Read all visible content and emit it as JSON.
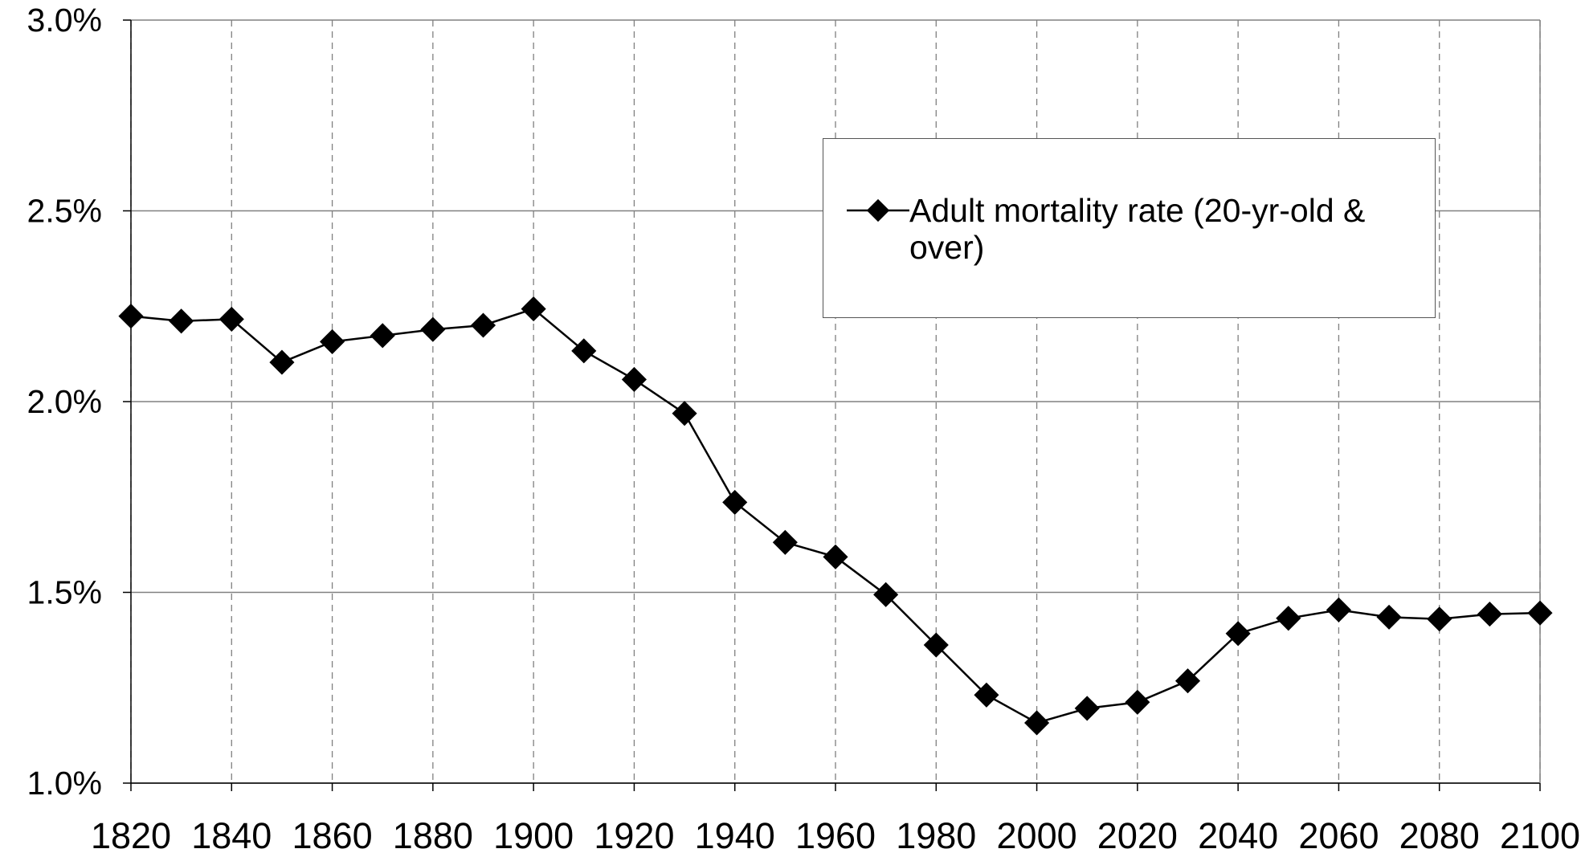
{
  "chart_data": {
    "type": "line",
    "x": [
      1820,
      1830,
      1840,
      1850,
      1860,
      1870,
      1880,
      1890,
      1900,
      1910,
      1920,
      1930,
      1940,
      1950,
      1960,
      1970,
      1980,
      1990,
      2000,
      2010,
      2020,
      2030,
      2040,
      2050,
      2060,
      2070,
      2080,
      2090,
      2100
    ],
    "series": [
      {
        "name": "Adult mortality rate (20-yr-old & over)",
        "color": "#000000",
        "values": [
          2.224,
          2.211,
          2.216,
          2.103,
          2.157,
          2.173,
          2.189,
          2.2,
          2.243,
          2.133,
          2.058,
          1.969,
          1.736,
          1.631,
          1.593,
          1.494,
          1.362,
          1.231,
          1.158,
          1.196,
          1.212,
          1.268,
          1.392,
          1.432,
          1.454,
          1.435,
          1.43,
          1.443,
          1.446
        ]
      }
    ],
    "xlim": [
      1820,
      2100
    ],
    "xticks": [
      1820,
      1840,
      1860,
      1880,
      1900,
      1920,
      1940,
      1960,
      1980,
      2000,
      2020,
      2040,
      2060,
      2080,
      2100
    ],
    "ylim": [
      1,
      3
    ],
    "yticks": [
      {
        "value": 1,
        "label": "1.0%"
      },
      {
        "value": 1.5,
        "label": "1.5%"
      },
      {
        "value": 2,
        "label": "2.0%"
      },
      {
        "value": 2.5,
        "label": "2.5%"
      },
      {
        "value": 3,
        "label": "3.0%"
      }
    ],
    "grid": true,
    "legend": "upper right"
  }
}
